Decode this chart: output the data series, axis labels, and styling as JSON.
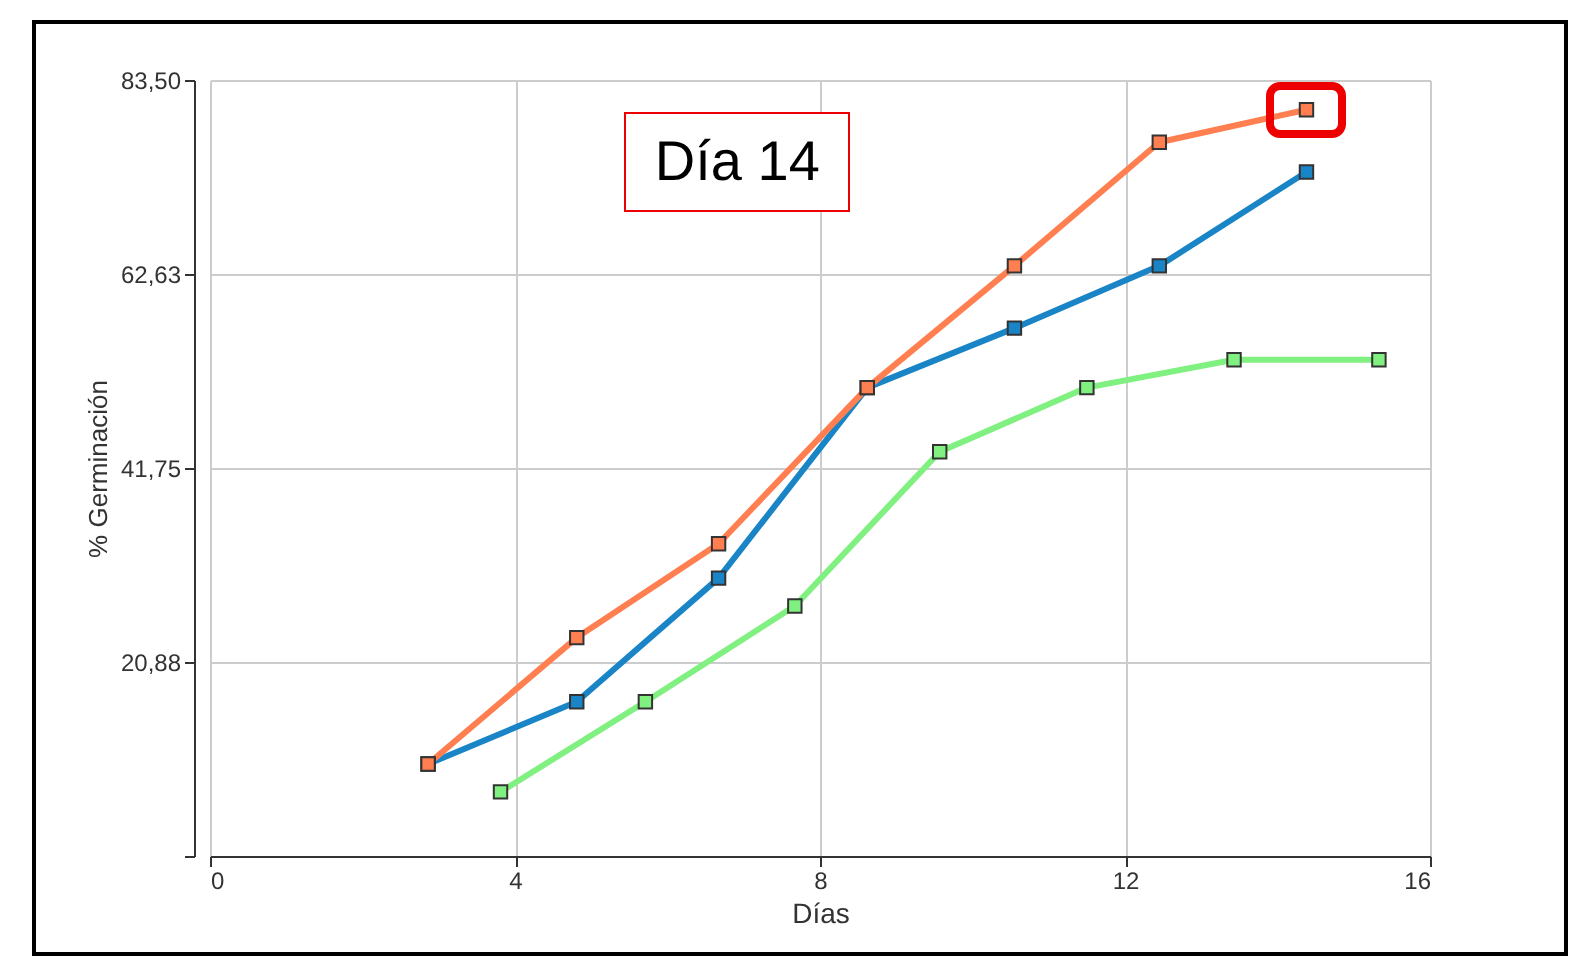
{
  "chart_data": {
    "type": "line",
    "xlabel": "Días",
    "ylabel": "% Germinación",
    "annotations": [
      "Día 14"
    ],
    "xlim": [
      0,
      16
    ],
    "xticks": [
      0,
      4,
      8,
      12,
      16
    ],
    "ylim": [
      0,
      83.5
    ],
    "yticks": [
      {
        "value": 0,
        "label": null
      },
      {
        "value": 20.88,
        "label": "20,88"
      },
      {
        "value": 41.75,
        "label": "41,75"
      },
      {
        "value": 62.63,
        "label": "62,63"
      },
      {
        "value": 83.5,
        "label": "83,50"
      }
    ],
    "grid": true,
    "marker": "square",
    "line_style": "solid",
    "series": [
      {
        "color": "#ff7f50",
        "x": [
          2.86,
          4.81,
          6.67,
          8.62,
          10.55,
          12.45,
          14.38
        ],
        "values": [
          9.9,
          23.5,
          33.6,
          50.4,
          63.5,
          76.8,
          80.3
        ]
      },
      {
        "color": "#1a85c6",
        "x": [
          2.86,
          4.81,
          6.67,
          8.62,
          10.55,
          12.45,
          14.38
        ],
        "values": [
          9.9,
          16.6,
          29.9,
          50.4,
          56.8,
          63.5,
          73.6
        ]
      },
      {
        "color": "#80f080",
        "x": [
          3.81,
          5.71,
          7.67,
          9.57,
          11.5,
          13.43,
          15.33
        ],
        "values": [
          6.9,
          16.6,
          26.9,
          43.5,
          50.4,
          53.4,
          53.4
        ]
      }
    ]
  }
}
